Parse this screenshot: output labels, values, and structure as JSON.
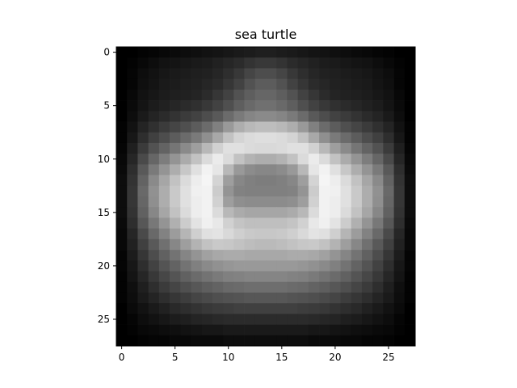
{
  "chart_data": {
    "type": "heatmap",
    "title": "sea turtle",
    "colormap": "gray",
    "rows": 28,
    "cols": 28,
    "x_ticks": [
      "0",
      "5",
      "10",
      "15",
      "20",
      "25"
    ],
    "y_ticks": [
      "0",
      "5",
      "10",
      "15",
      "20",
      "25"
    ],
    "x_range": [
      -0.5,
      27.5
    ],
    "y_range": [
      -0.5,
      27.5
    ],
    "y_inverted": true,
    "value_range": [
      0,
      1
    ],
    "grid": false,
    "values": [
      [
        0.0,
        0.0,
        0.01,
        0.02,
        0.03,
        0.04,
        0.05,
        0.06,
        0.07,
        0.08,
        0.09,
        0.1,
        0.11,
        0.12,
        0.12,
        0.11,
        0.1,
        0.09,
        0.08,
        0.07,
        0.06,
        0.05,
        0.04,
        0.03,
        0.02,
        0.01,
        0.0,
        0.0
      ],
      [
        0.0,
        0.01,
        0.03,
        0.05,
        0.07,
        0.08,
        0.09,
        0.1,
        0.11,
        0.13,
        0.15,
        0.17,
        0.2,
        0.22,
        0.22,
        0.2,
        0.17,
        0.15,
        0.13,
        0.11,
        0.1,
        0.09,
        0.08,
        0.07,
        0.05,
        0.03,
        0.01,
        0.0
      ],
      [
        0.0,
        0.02,
        0.05,
        0.07,
        0.09,
        0.1,
        0.11,
        0.12,
        0.13,
        0.15,
        0.18,
        0.22,
        0.27,
        0.3,
        0.3,
        0.27,
        0.22,
        0.18,
        0.15,
        0.13,
        0.12,
        0.11,
        0.1,
        0.09,
        0.07,
        0.05,
        0.02,
        0.0
      ],
      [
        0.0,
        0.02,
        0.06,
        0.08,
        0.1,
        0.11,
        0.12,
        0.13,
        0.15,
        0.17,
        0.21,
        0.26,
        0.32,
        0.36,
        0.36,
        0.32,
        0.26,
        0.21,
        0.17,
        0.15,
        0.13,
        0.12,
        0.11,
        0.1,
        0.08,
        0.06,
        0.02,
        0.0
      ],
      [
        0.0,
        0.03,
        0.07,
        0.09,
        0.11,
        0.12,
        0.13,
        0.14,
        0.17,
        0.21,
        0.26,
        0.32,
        0.37,
        0.4,
        0.4,
        0.37,
        0.32,
        0.26,
        0.21,
        0.17,
        0.14,
        0.13,
        0.12,
        0.11,
        0.09,
        0.07,
        0.03,
        0.0
      ],
      [
        0.0,
        0.04,
        0.08,
        0.11,
        0.13,
        0.15,
        0.17,
        0.19,
        0.22,
        0.26,
        0.31,
        0.37,
        0.41,
        0.44,
        0.44,
        0.41,
        0.37,
        0.31,
        0.26,
        0.22,
        0.19,
        0.17,
        0.15,
        0.13,
        0.11,
        0.08,
        0.04,
        0.0
      ],
      [
        0.0,
        0.05,
        0.1,
        0.14,
        0.17,
        0.2,
        0.23,
        0.26,
        0.3,
        0.35,
        0.42,
        0.48,
        0.52,
        0.54,
        0.54,
        0.52,
        0.48,
        0.42,
        0.35,
        0.3,
        0.26,
        0.23,
        0.2,
        0.17,
        0.14,
        0.1,
        0.05,
        0.0
      ],
      [
        0.01,
        0.07,
        0.14,
        0.19,
        0.23,
        0.27,
        0.31,
        0.36,
        0.42,
        0.5,
        0.6,
        0.68,
        0.72,
        0.74,
        0.74,
        0.72,
        0.68,
        0.6,
        0.5,
        0.42,
        0.36,
        0.31,
        0.27,
        0.23,
        0.19,
        0.14,
        0.07,
        0.01
      ],
      [
        0.01,
        0.09,
        0.18,
        0.25,
        0.3,
        0.36,
        0.42,
        0.48,
        0.56,
        0.66,
        0.76,
        0.83,
        0.86,
        0.87,
        0.87,
        0.86,
        0.83,
        0.76,
        0.66,
        0.56,
        0.48,
        0.42,
        0.36,
        0.3,
        0.25,
        0.18,
        0.09,
        0.01
      ],
      [
        0.02,
        0.12,
        0.23,
        0.32,
        0.39,
        0.46,
        0.54,
        0.62,
        0.72,
        0.82,
        0.88,
        0.88,
        0.86,
        0.85,
        0.85,
        0.86,
        0.88,
        0.88,
        0.82,
        0.72,
        0.62,
        0.54,
        0.46,
        0.39,
        0.32,
        0.23,
        0.12,
        0.02
      ],
      [
        0.03,
        0.15,
        0.29,
        0.4,
        0.49,
        0.58,
        0.67,
        0.76,
        0.86,
        0.92,
        0.86,
        0.76,
        0.7,
        0.68,
        0.68,
        0.7,
        0.76,
        0.86,
        0.92,
        0.86,
        0.76,
        0.67,
        0.58,
        0.49,
        0.4,
        0.29,
        0.15,
        0.03
      ],
      [
        0.04,
        0.18,
        0.35,
        0.48,
        0.58,
        0.68,
        0.78,
        0.88,
        0.95,
        0.9,
        0.72,
        0.6,
        0.55,
        0.53,
        0.53,
        0.55,
        0.6,
        0.72,
        0.9,
        0.95,
        0.88,
        0.78,
        0.68,
        0.58,
        0.48,
        0.35,
        0.18,
        0.04
      ],
      [
        0.05,
        0.2,
        0.39,
        0.54,
        0.65,
        0.76,
        0.86,
        0.93,
        0.96,
        0.83,
        0.62,
        0.53,
        0.5,
        0.49,
        0.49,
        0.5,
        0.53,
        0.62,
        0.83,
        0.96,
        0.93,
        0.86,
        0.76,
        0.65,
        0.54,
        0.39,
        0.2,
        0.05
      ],
      [
        0.05,
        0.21,
        0.41,
        0.57,
        0.68,
        0.79,
        0.88,
        0.94,
        0.95,
        0.8,
        0.58,
        0.51,
        0.5,
        0.5,
        0.5,
        0.5,
        0.51,
        0.58,
        0.8,
        0.95,
        0.94,
        0.88,
        0.79,
        0.68,
        0.57,
        0.41,
        0.21,
        0.05
      ],
      [
        0.05,
        0.21,
        0.4,
        0.56,
        0.68,
        0.79,
        0.88,
        0.93,
        0.95,
        0.82,
        0.62,
        0.56,
        0.55,
        0.55,
        0.55,
        0.55,
        0.56,
        0.62,
        0.82,
        0.95,
        0.93,
        0.88,
        0.79,
        0.68,
        0.56,
        0.4,
        0.21,
        0.05
      ],
      [
        0.05,
        0.2,
        0.38,
        0.53,
        0.65,
        0.76,
        0.86,
        0.93,
        0.95,
        0.86,
        0.72,
        0.67,
        0.65,
        0.65,
        0.65,
        0.65,
        0.67,
        0.72,
        0.86,
        0.95,
        0.93,
        0.86,
        0.76,
        0.65,
        0.53,
        0.38,
        0.2,
        0.05
      ],
      [
        0.04,
        0.18,
        0.34,
        0.47,
        0.58,
        0.69,
        0.8,
        0.89,
        0.94,
        0.91,
        0.82,
        0.77,
        0.75,
        0.75,
        0.75,
        0.75,
        0.77,
        0.82,
        0.91,
        0.94,
        0.89,
        0.8,
        0.69,
        0.58,
        0.47,
        0.34,
        0.18,
        0.04
      ],
      [
        0.03,
        0.15,
        0.29,
        0.41,
        0.51,
        0.61,
        0.71,
        0.81,
        0.88,
        0.89,
        0.85,
        0.81,
        0.79,
        0.78,
        0.78,
        0.79,
        0.81,
        0.85,
        0.89,
        0.88,
        0.81,
        0.71,
        0.61,
        0.51,
        0.41,
        0.29,
        0.15,
        0.03
      ],
      [
        0.03,
        0.13,
        0.25,
        0.35,
        0.44,
        0.53,
        0.62,
        0.7,
        0.76,
        0.79,
        0.78,
        0.76,
        0.74,
        0.73,
        0.73,
        0.74,
        0.76,
        0.78,
        0.79,
        0.76,
        0.7,
        0.62,
        0.53,
        0.44,
        0.35,
        0.25,
        0.13,
        0.03
      ],
      [
        0.02,
        0.11,
        0.21,
        0.3,
        0.38,
        0.45,
        0.52,
        0.58,
        0.63,
        0.66,
        0.67,
        0.67,
        0.66,
        0.66,
        0.66,
        0.66,
        0.67,
        0.67,
        0.66,
        0.63,
        0.58,
        0.52,
        0.45,
        0.38,
        0.3,
        0.21,
        0.11,
        0.02
      ],
      [
        0.02,
        0.09,
        0.18,
        0.26,
        0.33,
        0.39,
        0.45,
        0.5,
        0.54,
        0.57,
        0.59,
        0.6,
        0.6,
        0.6,
        0.6,
        0.6,
        0.6,
        0.59,
        0.57,
        0.54,
        0.5,
        0.45,
        0.39,
        0.33,
        0.26,
        0.18,
        0.09,
        0.02
      ],
      [
        0.01,
        0.08,
        0.15,
        0.22,
        0.28,
        0.33,
        0.38,
        0.42,
        0.45,
        0.48,
        0.5,
        0.51,
        0.52,
        0.52,
        0.52,
        0.52,
        0.51,
        0.5,
        0.48,
        0.45,
        0.42,
        0.38,
        0.33,
        0.28,
        0.22,
        0.15,
        0.08,
        0.01
      ],
      [
        0.01,
        0.06,
        0.12,
        0.18,
        0.23,
        0.27,
        0.31,
        0.34,
        0.37,
        0.39,
        0.41,
        0.42,
        0.43,
        0.43,
        0.43,
        0.43,
        0.42,
        0.41,
        0.39,
        0.37,
        0.34,
        0.31,
        0.27,
        0.23,
        0.18,
        0.12,
        0.06,
        0.01
      ],
      [
        0.01,
        0.05,
        0.1,
        0.14,
        0.18,
        0.21,
        0.24,
        0.27,
        0.29,
        0.31,
        0.32,
        0.33,
        0.34,
        0.34,
        0.34,
        0.34,
        0.33,
        0.32,
        0.31,
        0.29,
        0.27,
        0.24,
        0.21,
        0.18,
        0.14,
        0.1,
        0.05,
        0.01
      ],
      [
        0.0,
        0.04,
        0.07,
        0.1,
        0.13,
        0.16,
        0.18,
        0.2,
        0.22,
        0.23,
        0.24,
        0.25,
        0.25,
        0.25,
        0.25,
        0.25,
        0.25,
        0.24,
        0.23,
        0.22,
        0.2,
        0.18,
        0.16,
        0.13,
        0.1,
        0.07,
        0.04,
        0.0
      ],
      [
        0.0,
        0.02,
        0.05,
        0.07,
        0.09,
        0.11,
        0.12,
        0.14,
        0.15,
        0.16,
        0.17,
        0.17,
        0.17,
        0.17,
        0.17,
        0.17,
        0.17,
        0.17,
        0.16,
        0.15,
        0.14,
        0.12,
        0.11,
        0.09,
        0.07,
        0.05,
        0.02,
        0.0
      ],
      [
        0.0,
        0.01,
        0.03,
        0.04,
        0.05,
        0.06,
        0.07,
        0.08,
        0.09,
        0.09,
        0.1,
        0.1,
        0.1,
        0.1,
        0.1,
        0.1,
        0.1,
        0.1,
        0.09,
        0.09,
        0.08,
        0.07,
        0.06,
        0.05,
        0.04,
        0.03,
        0.01,
        0.0
      ],
      [
        0.0,
        0.0,
        0.01,
        0.02,
        0.02,
        0.03,
        0.03,
        0.04,
        0.04,
        0.04,
        0.05,
        0.05,
        0.05,
        0.05,
        0.05,
        0.05,
        0.05,
        0.05,
        0.04,
        0.04,
        0.04,
        0.03,
        0.03,
        0.02,
        0.02,
        0.01,
        0.0,
        0.0
      ]
    ]
  }
}
